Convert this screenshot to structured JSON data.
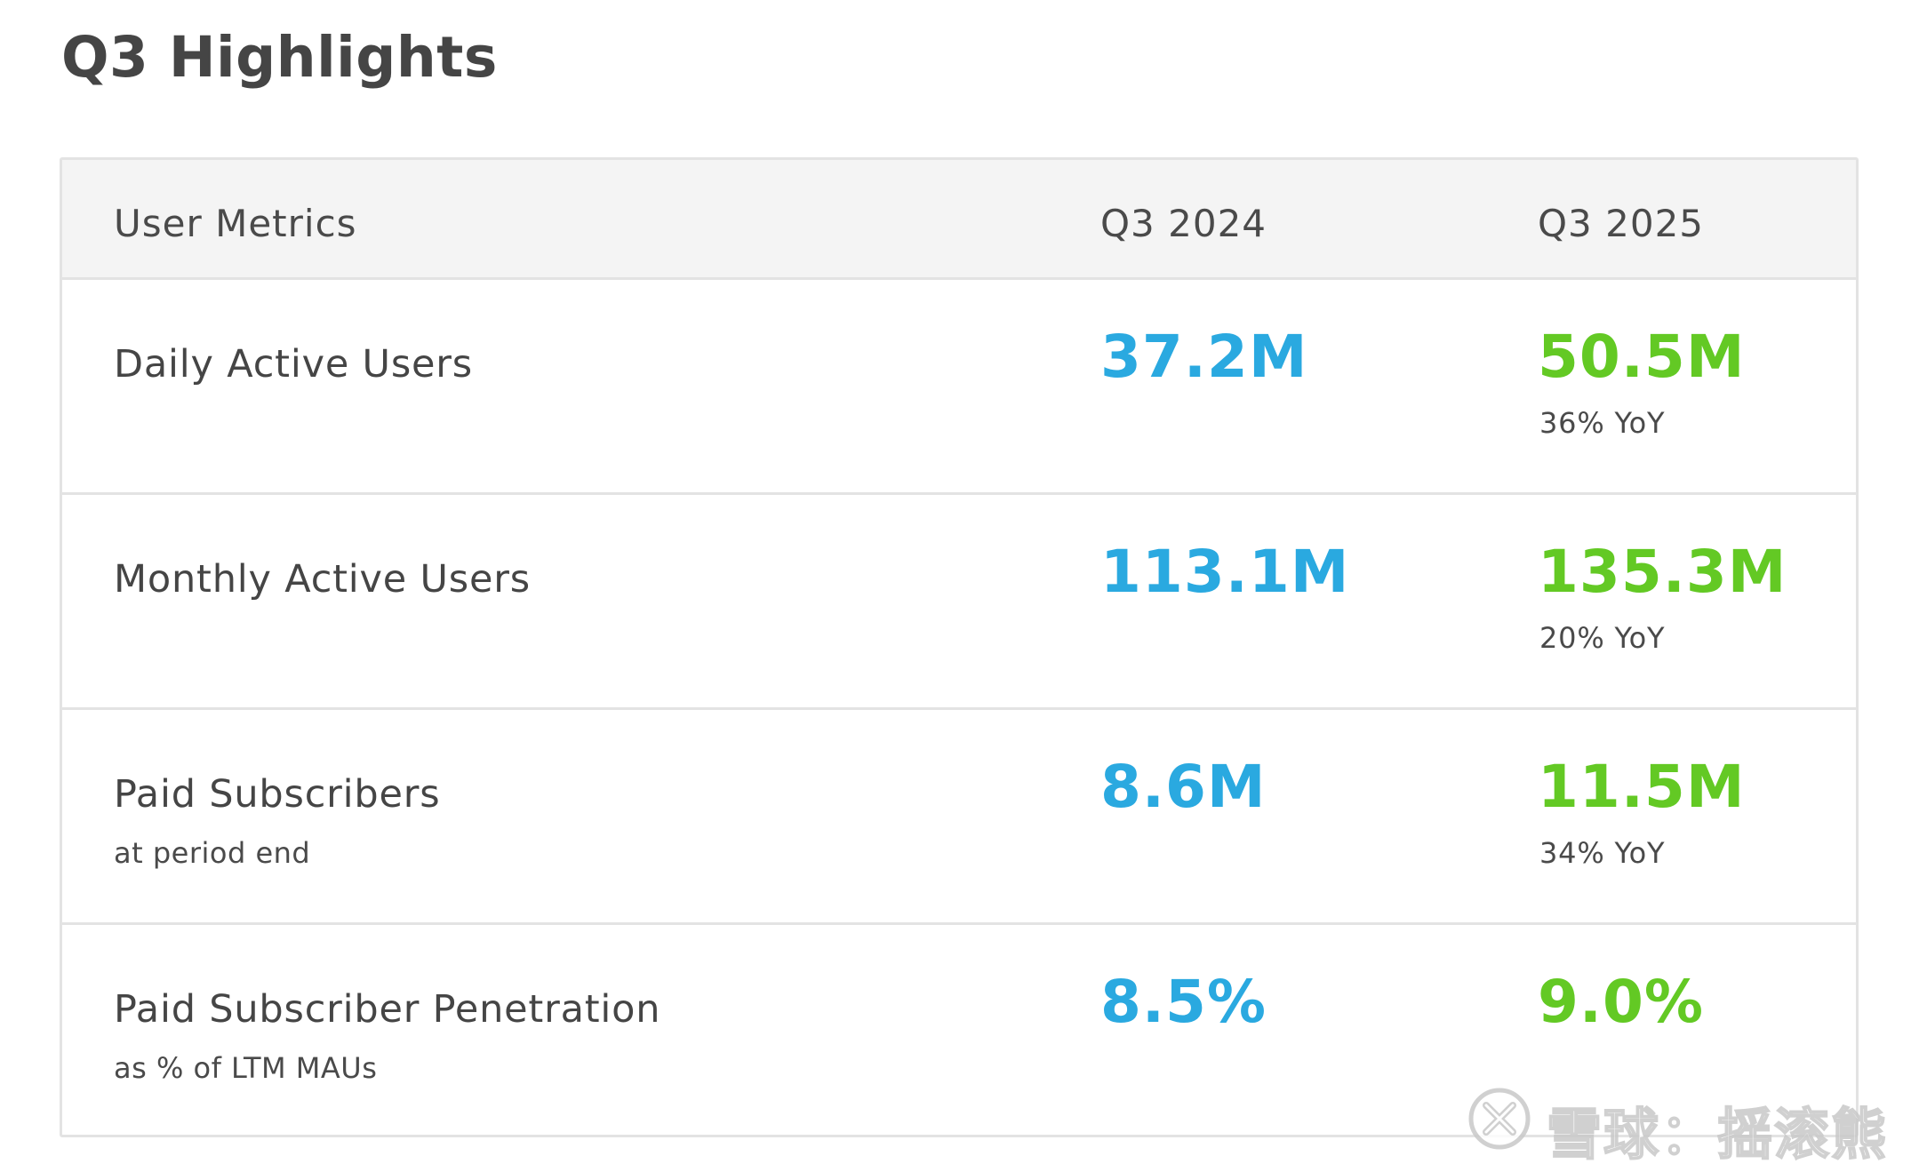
{
  "page": {
    "title": "Q3 Highlights"
  },
  "table": {
    "headers": {
      "label": "User Metrics",
      "col1": "Q3 2024",
      "col2": "Q3 2025"
    },
    "rows": [
      {
        "name": "Daily Active Users",
        "sub": "",
        "prev": "37.2M",
        "curr": "50.5M",
        "yoy": "36% YoY"
      },
      {
        "name": "Monthly Active Users",
        "sub": "",
        "prev": "113.1M",
        "curr": "135.3M",
        "yoy": "20% YoY"
      },
      {
        "name": "Paid Subscribers",
        "sub": "at period end",
        "prev": "8.6M",
        "curr": "11.5M",
        "yoy": "34% YoY"
      },
      {
        "name": "Paid Subscriber Penetration",
        "sub": "as % of LTM MAUs",
        "prev": "8.5%",
        "curr": "9.0%",
        "yoy": ""
      }
    ]
  },
  "colors": {
    "prev_value": "#2aa9e0",
    "curr_value": "#63c924",
    "header_bg": "#f4f4f4",
    "border": "#e3e3e3"
  },
  "watermark": {
    "text": "雪球：摇滚熊",
    "icon": "xueqiu-logo-icon"
  }
}
